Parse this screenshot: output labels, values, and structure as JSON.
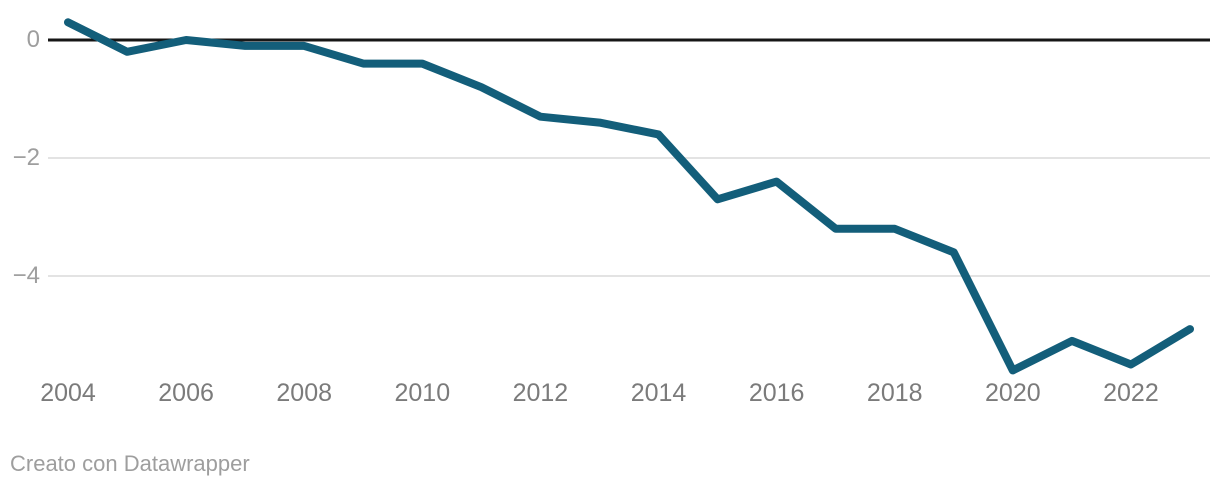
{
  "chart_data": {
    "type": "line",
    "title": "",
    "xlabel": "",
    "ylabel": "",
    "x": [
      2004,
      2005,
      2006,
      2007,
      2008,
      2009,
      2010,
      2011,
      2012,
      2013,
      2014,
      2015,
      2016,
      2017,
      2018,
      2019,
      2020,
      2021,
      2022,
      2023
    ],
    "values": [
      0.3,
      -0.2,
      0.0,
      -0.1,
      -0.1,
      -0.4,
      -0.4,
      -0.8,
      -1.3,
      -1.4,
      -1.6,
      -2.7,
      -2.4,
      -3.2,
      -3.2,
      -3.6,
      -5.6,
      -5.1,
      -5.5,
      -4.9
    ],
    "ylim": [
      -6.6,
      0.7
    ],
    "xlim": [
      2004,
      2023
    ],
    "yticks": [
      {
        "value": 0,
        "label": "0"
      },
      {
        "value": -2,
        "label": "−2"
      },
      {
        "value": -4,
        "label": "−4"
      }
    ],
    "xticks": [
      {
        "value": 2004,
        "label": "2004"
      },
      {
        "value": 2006,
        "label": "2006"
      },
      {
        "value": 2008,
        "label": "2008"
      },
      {
        "value": 2010,
        "label": "2010"
      },
      {
        "value": 2012,
        "label": "2012"
      },
      {
        "value": 2014,
        "label": "2014"
      },
      {
        "value": 2016,
        "label": "2016"
      },
      {
        "value": 2018,
        "label": "2018"
      },
      {
        "value": 2020,
        "label": "2020"
      },
      {
        "value": 2022,
        "label": "2022"
      }
    ],
    "grid": "horizontal",
    "legend": "none",
    "colors": {
      "line": "#135e7a",
      "zero_line": "#161616",
      "gridline": "#e3e3e3",
      "x_tick_text": "#7b7b7b",
      "y_tick_text": "#9e9e9e"
    }
  },
  "footer": {
    "attribution": "Creato con Datawrapper"
  }
}
